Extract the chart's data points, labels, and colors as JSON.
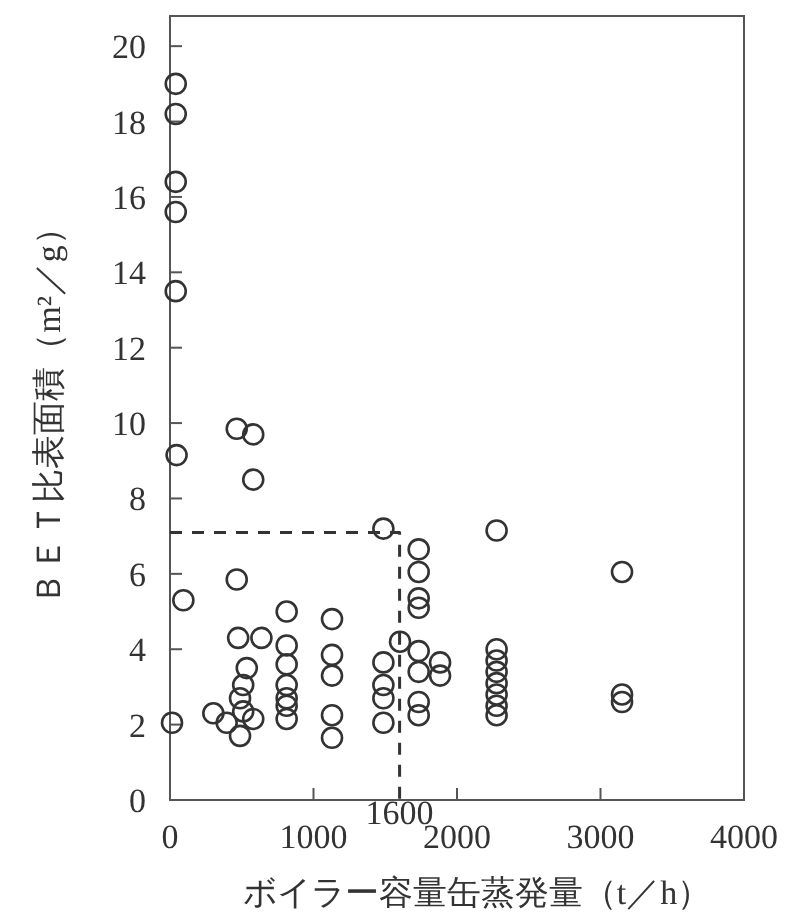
{
  "chart_data": {
    "type": "scatter",
    "xlabel": "ボイラー容量缶蒸発量（t／h）",
    "ylabel": "ＢＥＴ比表面積（m²／g）",
    "xlim": [
      0,
      4000
    ],
    "ylim": [
      0,
      20.8
    ],
    "xticks": [
      0,
      1000,
      2000,
      3000,
      4000
    ],
    "yticks": [
      0,
      2,
      4,
      6,
      8,
      10,
      12,
      14,
      16,
      18,
      20
    ],
    "grid": false,
    "series": [
      {
        "marker": "circle",
        "color": "#333333",
        "x": [
          40,
          40,
          40,
          40,
          40,
          46,
          93,
          14,
          465,
          580,
          580,
          465,
          475,
          637,
          535,
          510,
          488,
          302,
          395,
          510,
          580,
          488,
          813,
          813,
          813,
          813,
          813,
          813,
          813,
          1129,
          1129,
          1129,
          1129,
          1129,
          1487,
          1487,
          1487,
          1487,
          1487,
          1603,
          1733,
          1733,
          1733,
          1733,
          1733,
          1733,
          1733,
          1733,
          1882,
          1882,
          2276,
          2276,
          2276,
          2276,
          2276,
          2276,
          2276,
          2276,
          3150,
          3150,
          3150
        ],
        "values": [
          19.0,
          18.2,
          16.4,
          15.6,
          13.5,
          9.15,
          5.3,
          2.05,
          9.85,
          9.7,
          8.5,
          5.85,
          4.3,
          4.3,
          3.5,
          3.05,
          2.7,
          2.3,
          2.05,
          2.35,
          2.15,
          1.7,
          5.0,
          4.1,
          3.6,
          3.05,
          2.7,
          2.15,
          2.5,
          4.8,
          3.85,
          3.3,
          2.25,
          1.65,
          7.2,
          3.65,
          3.05,
          2.7,
          2.05,
          4.2,
          6.65,
          6.05,
          5.35,
          5.1,
          3.95,
          3.4,
          2.6,
          2.25,
          3.65,
          3.3,
          7.15,
          4.0,
          3.7,
          3.4,
          3.1,
          2.8,
          2.5,
          2.25,
          6.05,
          2.8,
          2.6
        ]
      },
      {
        "type": "line",
        "line_style": "dashed",
        "color": "#333333",
        "x": [
          0,
          1600,
          1600
        ],
        "values": [
          7.1,
          7.1,
          0
        ]
      }
    ],
    "annotations": [
      {
        "text": "1600",
        "x": 1600,
        "y": 0
      }
    ]
  }
}
